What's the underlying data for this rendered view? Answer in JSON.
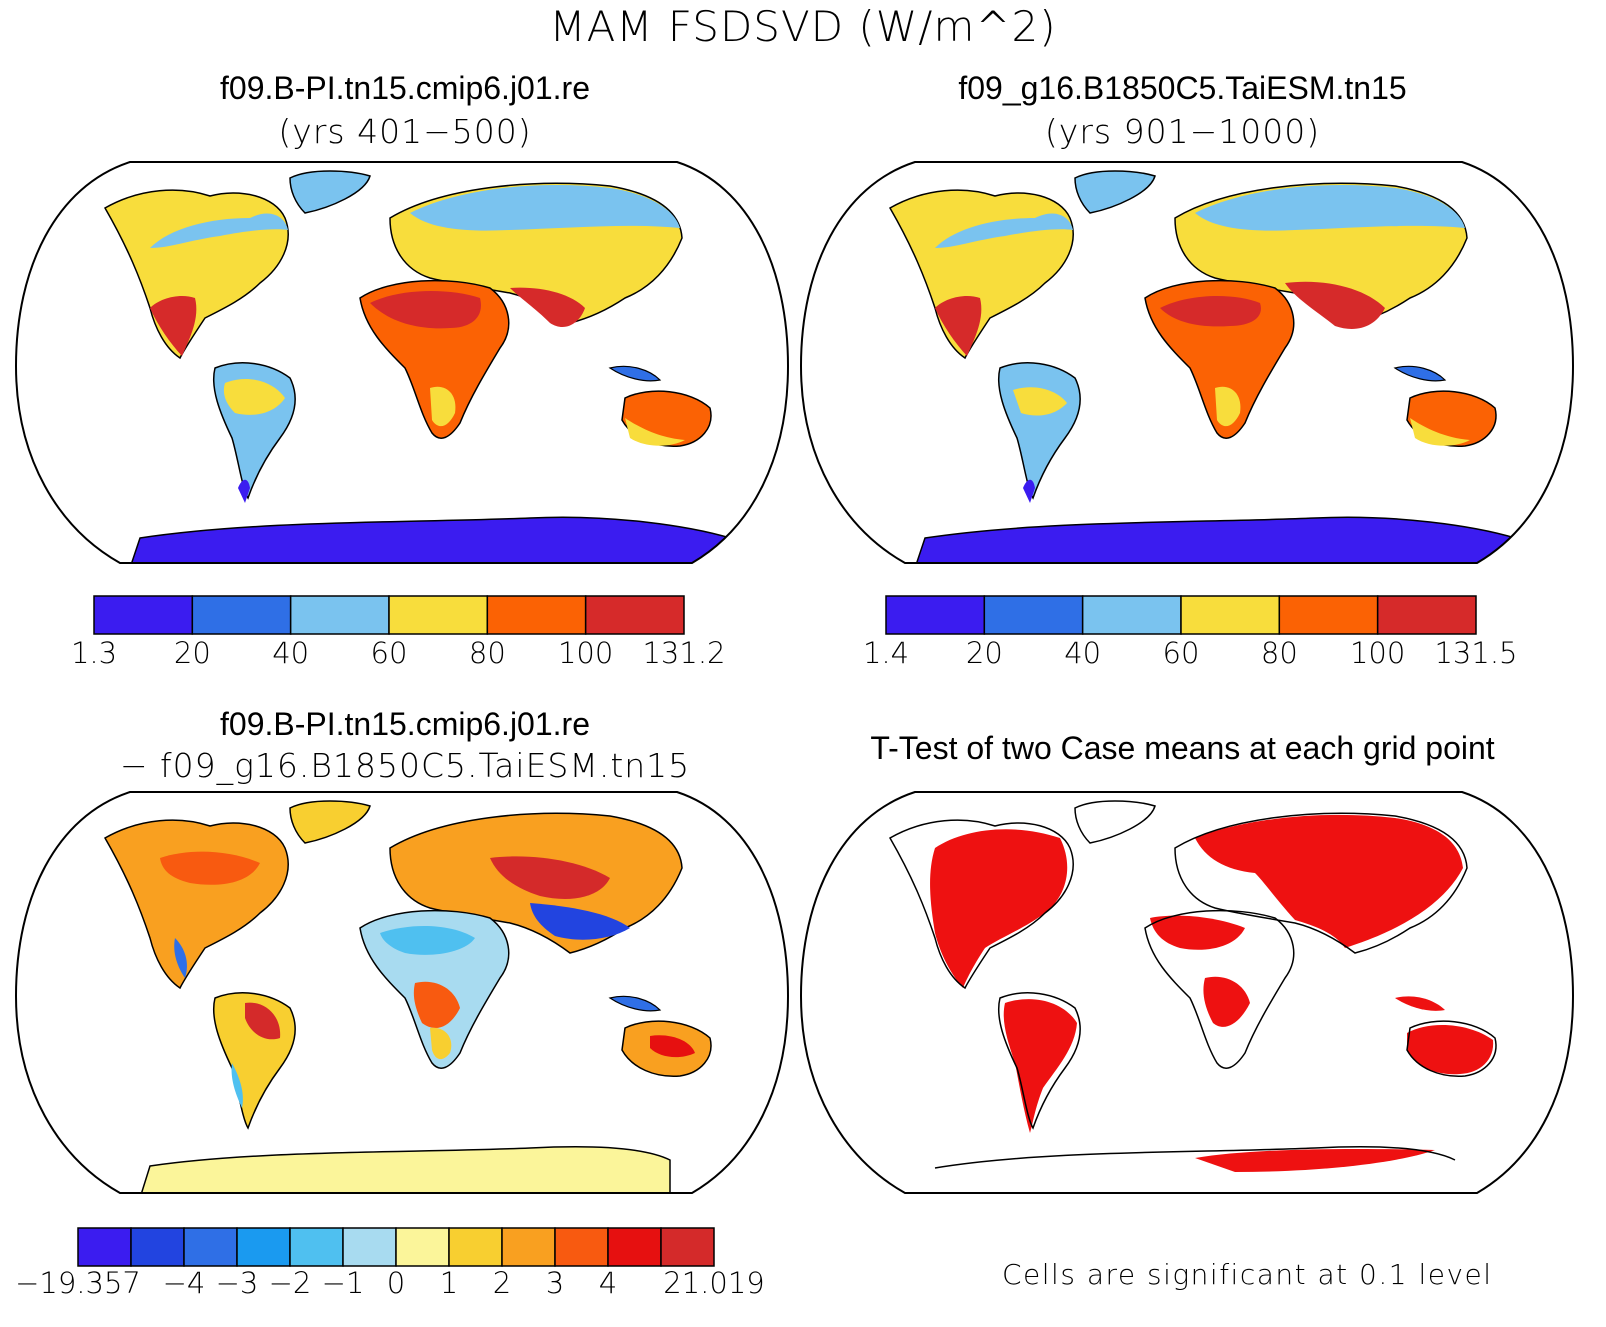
{
  "title": "MAM FSDSVD (W/m^2)",
  "panels": {
    "top_left": {
      "case": "f09.B-PI.tn15.cmip6.j01.re",
      "years": "(yrs 401−500)",
      "colorbar": {
        "labels": [
          "1.3",
          "20",
          "40",
          "60",
          "80",
          "100",
          "131.2"
        ],
        "colors": [
          "#3b1cf0",
          "#2f6fe6",
          "#7ac3ef",
          "#f8dd3c",
          "#fb6204",
          "#d62a2a"
        ]
      }
    },
    "top_right": {
      "case": "f09_g16.B1850C5.TaiESM.tn15",
      "years": "(yrs 901−1000)",
      "colorbar": {
        "labels": [
          "1.4",
          "20",
          "40",
          "60",
          "80",
          "100",
          "131.5"
        ],
        "colors": [
          "#3b1cf0",
          "#2f6fe6",
          "#7ac3ef",
          "#f8dd3c",
          "#fb6204",
          "#d62a2a"
        ]
      }
    },
    "bottom_left": {
      "case": "f09.B-PI.tn15.cmip6.j01.re",
      "diff": "− f09_g16.B1850C5.TaiESM.tn15",
      "colorbar": {
        "labels": [
          "−19.357",
          "−4",
          "−3",
          "−2",
          "−1",
          "0",
          "1",
          "2",
          "3",
          "4",
          "21.019"
        ],
        "colors": [
          "#3b1cf0",
          "#2244e0",
          "#2f6fe6",
          "#1a9af0",
          "#4fc0f0",
          "#a8dbf0",
          "#fbf59a",
          "#f8cf30",
          "#f9a020",
          "#f85a10",
          "#e61010",
          "#d42a2a"
        ]
      }
    },
    "bottom_right": {
      "title": "T-Test of two Case means at each grid point",
      "note": "Cells are significant at 0.1 level",
      "sig_color": "#ee1111"
    }
  }
}
